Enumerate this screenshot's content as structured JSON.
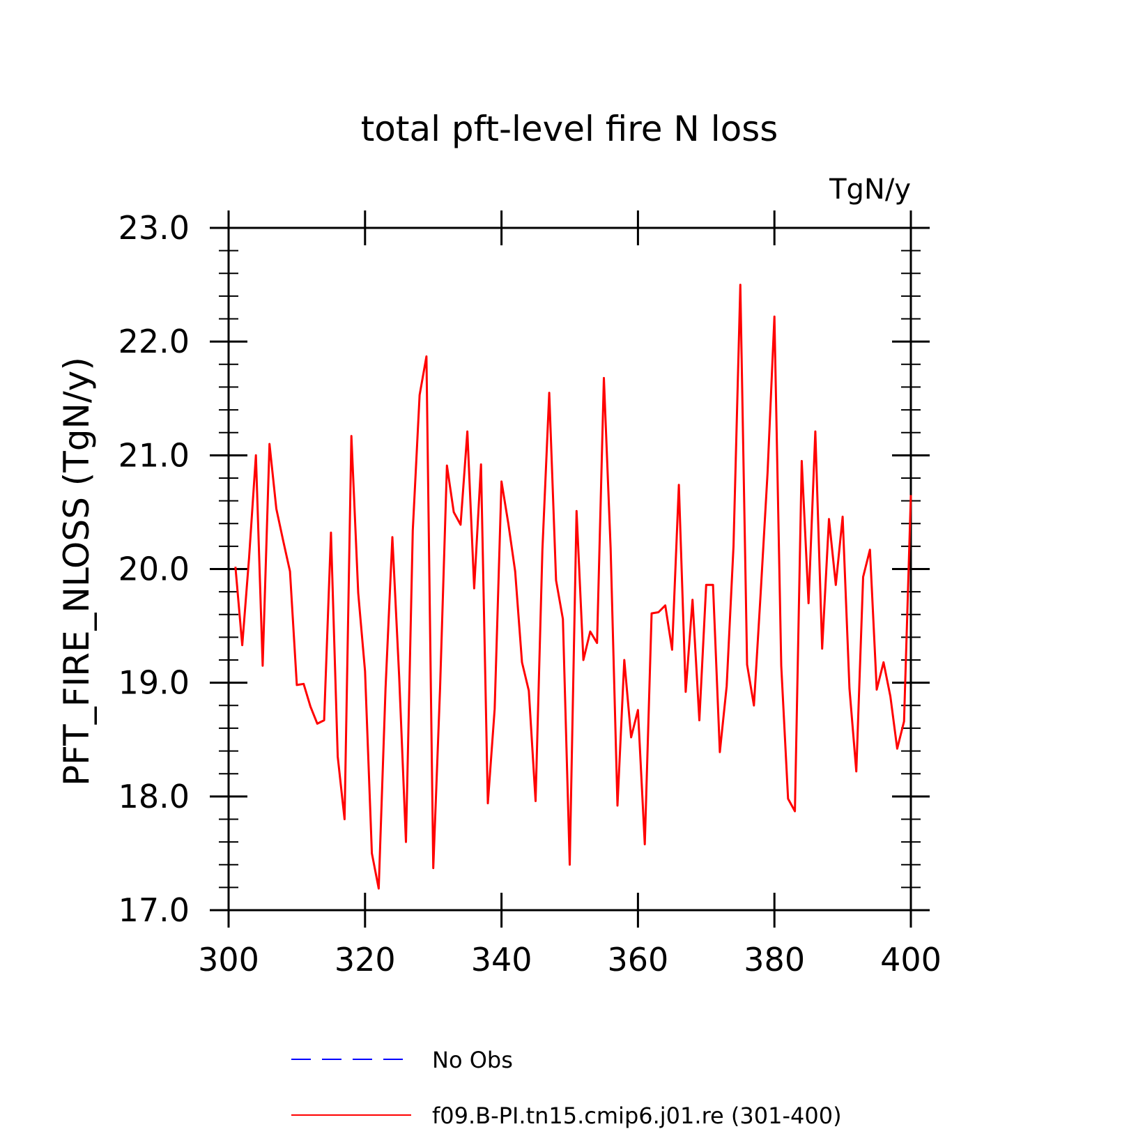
{
  "chart_data": {
    "type": "line",
    "title": "total pft-level fire N loss",
    "units_label": "TgN/y",
    "ylabel": "PFT_FIRE_NLOSS  (TgN/y)",
    "xlabel": "",
    "xlim": [
      300,
      400
    ],
    "ylim": [
      17.0,
      23.0
    ],
    "x_ticks": [
      "300",
      "320",
      "340",
      "360",
      "380",
      "400"
    ],
    "y_ticks": [
      "17.0",
      "18.0",
      "19.0",
      "20.0",
      "21.0",
      "22.0",
      "23.0"
    ],
    "x_tick_values": [
      300,
      320,
      340,
      360,
      380,
      400
    ],
    "y_tick_values": [
      17,
      18,
      19,
      20,
      21,
      22,
      23
    ],
    "grid": false,
    "legend_position": "bottom",
    "series": [
      {
        "name": "f09.B-PI.tn15.cmip6.j01.re (301-400)",
        "color": "#ff0000",
        "style": "solid",
        "x": [
          301,
          302,
          303,
          304,
          305,
          306,
          307,
          308,
          309,
          310,
          311,
          312,
          313,
          314,
          315,
          316,
          317,
          318,
          319,
          320,
          321,
          322,
          323,
          324,
          325,
          326,
          327,
          328,
          329,
          330,
          331,
          332,
          333,
          334,
          335,
          336,
          337,
          338,
          339,
          340,
          341,
          342,
          343,
          344,
          345,
          346,
          347,
          348,
          349,
          350,
          351,
          352,
          353,
          354,
          355,
          356,
          357,
          358,
          359,
          360,
          361,
          362,
          363,
          364,
          365,
          366,
          367,
          368,
          369,
          370,
          371,
          372,
          373,
          374,
          375,
          376,
          377,
          378,
          379,
          380,
          381,
          382,
          383,
          384,
          385,
          386,
          387,
          388,
          389,
          390,
          391,
          392,
          393,
          394,
          395,
          396,
          397,
          398,
          399,
          400
        ],
        "y": [
          20.02,
          19.33,
          20.1,
          21.0,
          19.15,
          21.1,
          20.53,
          20.25,
          19.98,
          18.98,
          18.99,
          18.79,
          18.64,
          18.67,
          20.32,
          18.35,
          17.8,
          21.17,
          19.79,
          19.1,
          17.5,
          17.19,
          18.95,
          20.28,
          19.05,
          17.6,
          20.34,
          21.53,
          21.87,
          17.37,
          18.96,
          20.91,
          20.5,
          20.39,
          21.21,
          19.83,
          20.92,
          17.94,
          18.77,
          20.77,
          20.4,
          19.98,
          19.18,
          18.93,
          17.96,
          20.17,
          21.55,
          19.9,
          19.56,
          17.4,
          20.51,
          19.2,
          19.45,
          19.35,
          21.68,
          20.18,
          17.92,
          19.2,
          18.52,
          18.76,
          17.58,
          19.61,
          19.62,
          19.68,
          19.29,
          20.74,
          18.92,
          19.73,
          18.67,
          19.86,
          19.86,
          18.39,
          18.97,
          20.2,
          22.5,
          19.16,
          18.8,
          19.8,
          20.85,
          22.22,
          19.15,
          17.98,
          17.87,
          20.95,
          19.7,
          21.21,
          19.3,
          20.44,
          19.86,
          20.46,
          18.95,
          18.22,
          19.93,
          20.17,
          18.94,
          19.18,
          18.88,
          18.42,
          18.66,
          20.65
        ]
      }
    ],
    "legend": [
      {
        "label": "No Obs",
        "color": "#0000ff",
        "style": "dashed"
      },
      {
        "label": "f09.B-PI.tn15.cmip6.j01.re (301-400)",
        "color": "#ff0000",
        "style": "solid"
      }
    ]
  }
}
